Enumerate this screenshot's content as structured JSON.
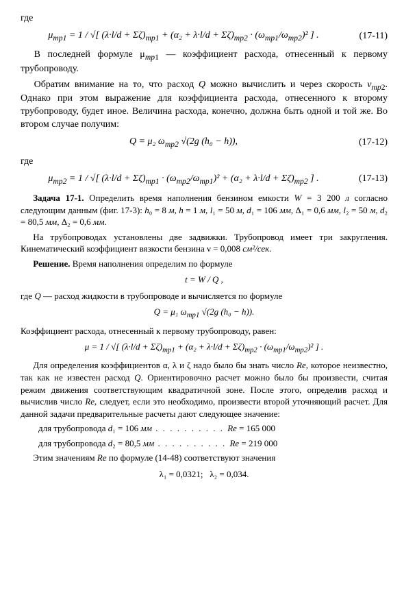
{
  "top_where": "где",
  "eq11": {
    "expr": "μ<sub>mp1</sub> = 1 / √[ (λ·l/d + Σζ)<sub>mp1</sub> + (α₂ + λ·l/d + Σζ)<sub>mp2</sub> · (ω<sub>mp1</sub>/ω<sub>mp2</sub>)² ] .",
    "num": "(17-11)"
  },
  "p1": "В последней формуле μ<sub><i>mp</i>1</sub> — коэффициент расхода, отнесенный к первому трубопроводу.",
  "p2": "Обратим внимание на то, что расход <i>Q</i> можно вычислить и через скорость <i>v</i><sub><i>mp</i>2</sub>. Однако при этом выражение для коэффициента расхода, отнесенного к второму трубопроводу, будет иное. Величина расхода, конечно, должна быть одной и той же. Во втором случае получим:",
  "eq12": {
    "expr": "<i>Q</i> = μ₂ ω<sub><i>mp</i>2</sub> √(2g (h₀ − h)),",
    "num": "(17-12)"
  },
  "mid_where": "где",
  "eq13": {
    "expr": "μ<sub>mp2</sub> = 1 / √[ (λ·l/d + Σζ)<sub>mp1</sub> · (ω<sub>mp2</sub>/ω<sub>mp1</sub>)² + (α₂ + λ·l/d + Σζ)<sub>mp2</sub> ] .",
    "num": "(17-13)"
  },
  "task_head": "Задача 17-1.",
  "task_body": " Определить время наполнения бензином емкости <i>W</i> = 3 200 <i>л</i> согласно следующим данным (фиг. 17-3): <i>h</i>₀ = 8 <i>м</i>, <i>h</i> = 1 <i>м</i>, <i>l</i>₁ = 50 <i>м</i>, <i>d</i>₁ = 106 <i>мм</i>, Δ₁ = 0,6 <i>мм</i>, <i>l</i>₂ = 50 <i>м</i>, <i>d</i>₂ = 80,5 <i>мм</i>, Δ₂ = 0,6 <i>мм</i>.",
  "task_p2": "На трубопроводах установлены две задвижки. Трубопровод имеет три закругления. Кинематический коэффициент вязкости бензина ν = 0,008 <i>см²/сек</i>.",
  "sol_head": "Решение.",
  "sol_body": " Время наполнения определим по формуле",
  "eq_t": "<i>t</i> = <i>W</i> / <i>Q</i> ,",
  "p_sol2": "где <i>Q</i> — расход жидкости в трубопроводе и вычисляется по формуле",
  "eq_Q": "<i>Q</i> = μ₁ ω<sub><i>mp</i>1</sub> √(2g (h₀ − h)).",
  "p_sol3": "Коэффициент расхода, отнесенный к первому трубопроводу, равен:",
  "eq_mu": "μ = 1 / √[ (λ·l/d + Σζ)<sub>mp1</sub> + (α₂ + λ·l/d + Σζ)<sub>mp2</sub> · (ω<sub>mp1</sub>/ω<sub>mp2</sub>)² ] .",
  "p_sol4": "Для определения коэффициентов α, λ и ζ надо было бы знать число <i>Re</i>, которое неизвестно, так как не известен расход <i>Q</i>. Ориентировочно расчет можно было бы произвести, считая режим движения соответствующим квадратичной зоне. После этого, определив расход и вычислив число <i>Re</i>, следует, если это необходимо, произвести второй уточняющий расчет. Для данной задачи предварительные расчеты дают следующее значение:",
  "re1": {
    "label": "для трубопровода <i>d</i>₁ = 106 <i>мм</i>",
    "dots": " .  .  .  .  .  .  .  .  .  . ",
    "val": "<i>Re</i> = 165 000"
  },
  "re2": {
    "label": "для трубопровода <i>d</i>₂ = 80,5 <i>мм</i>",
    "dots": " .  .  .  .  .  .  .  .  .  . ",
    "val": "<i>Re</i> = 219 000"
  },
  "p_sol5": "Этим значениям <i>Re</i> по формуле (14-48) соответствуют значения",
  "lambdas": "λ₁ = 0,0321;&nbsp;&nbsp;&nbsp;λ₂ = 0,034."
}
